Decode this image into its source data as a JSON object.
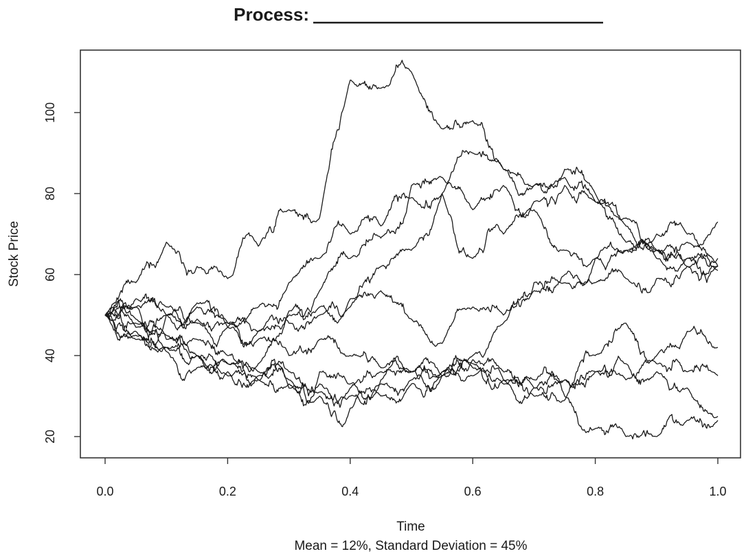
{
  "chart_data": {
    "type": "line",
    "title": "Process:",
    "title_blank": "________________________",
    "xlabel": "Time",
    "ylabel": "Stock Price",
    "caption": "Mean = 12%, Standard Deviation = 45%",
    "xlim": [
      0,
      1
    ],
    "ylim": [
      17,
      113
    ],
    "x_ticks": [
      0.0,
      0.2,
      0.4,
      0.6,
      0.8,
      1.0
    ],
    "x_tick_labels": [
      "0.0",
      "0.2",
      "0.4",
      "0.6",
      "0.8",
      "1.0"
    ],
    "y_ticks": [
      20,
      40,
      60,
      80,
      100
    ],
    "y_tick_labels": [
      "20",
      "40",
      "60",
      "80",
      "100"
    ],
    "grid": false,
    "legend": "none",
    "line_color": "#1a1a1a",
    "series": [
      {
        "x": [
          0,
          0.05,
          0.1,
          0.15,
          0.2,
          0.25,
          0.3,
          0.35,
          0.4,
          0.45,
          0.5,
          0.55,
          0.6,
          0.65,
          0.7,
          0.75,
          0.8,
          0.85,
          0.9,
          0.95,
          1.0
        ],
        "values": [
          50,
          58,
          68,
          62,
          59,
          67,
          76,
          74,
          108,
          106,
          110,
          96,
          98,
          86,
          82,
          84,
          78,
          72,
          70,
          70,
          73
        ]
      },
      {
        "x": [
          0,
          0.05,
          0.1,
          0.15,
          0.2,
          0.25,
          0.3,
          0.35,
          0.4,
          0.45,
          0.5,
          0.55,
          0.6,
          0.65,
          0.7,
          0.75,
          0.8,
          0.85,
          0.9,
          0.95,
          1.0
        ],
        "values": [
          50,
          52,
          50,
          49,
          47,
          52,
          58,
          64,
          70,
          72,
          79,
          80,
          90,
          86,
          82,
          86,
          80,
          68,
          66,
          64,
          62
        ]
      },
      {
        "x": [
          0,
          0.05,
          0.1,
          0.15,
          0.2,
          0.25,
          0.3,
          0.35,
          0.4,
          0.45,
          0.5,
          0.55,
          0.6,
          0.65,
          0.7,
          0.75,
          0.8,
          0.85,
          0.9,
          0.95,
          1.0
        ],
        "values": [
          50,
          49,
          50,
          52,
          47,
          44,
          51,
          56,
          64,
          69,
          82,
          84,
          76,
          82,
          76,
          66,
          64,
          66,
          64,
          64,
          64
        ]
      },
      {
        "x": [
          0,
          0.05,
          0.1,
          0.15,
          0.2,
          0.25,
          0.3,
          0.35,
          0.4,
          0.45,
          0.5,
          0.55,
          0.6,
          0.65,
          0.7,
          0.75,
          0.8,
          0.85,
          0.9,
          0.95,
          1.0
        ],
        "values": [
          50,
          52,
          50,
          48,
          48,
          46,
          48,
          50,
          52,
          62,
          66,
          80,
          64,
          70,
          78,
          82,
          78,
          74,
          66,
          62,
          61
        ]
      },
      {
        "x": [
          0,
          0.05,
          0.1,
          0.15,
          0.2,
          0.25,
          0.3,
          0.35,
          0.4,
          0.45,
          0.5,
          0.55,
          0.6,
          0.65,
          0.7,
          0.75,
          0.8,
          0.85,
          0.9,
          0.95,
          1.0
        ],
        "values": [
          50,
          54,
          52,
          53,
          48,
          46,
          50,
          52,
          54,
          56,
          49,
          43,
          52,
          50,
          58,
          60,
          64,
          66,
          66,
          68,
          62
        ]
      },
      {
        "x": [
          0,
          0.05,
          0.1,
          0.15,
          0.2,
          0.25,
          0.3,
          0.35,
          0.4,
          0.45,
          0.5,
          0.55,
          0.6,
          0.65,
          0.7,
          0.75,
          0.8,
          0.85,
          0.9,
          0.95,
          1.0
        ],
        "values": [
          50,
          47,
          44,
          40,
          38,
          36,
          34,
          33,
          32,
          36,
          36,
          35,
          40,
          48,
          56,
          58,
          58,
          59,
          59,
          62,
          62
        ]
      },
      {
        "x": [
          0,
          0.05,
          0.1,
          0.15,
          0.2,
          0.25,
          0.3,
          0.35,
          0.4,
          0.45,
          0.5,
          0.55,
          0.6,
          0.65,
          0.7,
          0.75,
          0.8,
          0.85,
          0.9,
          0.95,
          1.0
        ],
        "values": [
          50,
          44,
          41,
          37,
          35,
          34,
          33,
          31,
          30,
          33,
          34,
          35,
          38,
          34,
          30,
          29,
          40,
          48,
          38,
          36,
          35
        ]
      },
      {
        "x": [
          0,
          0.05,
          0.1,
          0.15,
          0.2,
          0.25,
          0.3,
          0.35,
          0.4,
          0.45,
          0.5,
          0.55,
          0.6,
          0.65,
          0.7,
          0.75,
          0.8,
          0.85,
          0.9,
          0.95,
          1.0
        ],
        "values": [
          50,
          46,
          42,
          40,
          36,
          34,
          32,
          30,
          27,
          30,
          33,
          36,
          35,
          33,
          32,
          34,
          36,
          38,
          36,
          32,
          25
        ]
      },
      {
        "x": [
          0,
          0.05,
          0.1,
          0.15,
          0.2,
          0.25,
          0.3,
          0.35,
          0.4,
          0.45,
          0.5,
          0.55,
          0.6,
          0.65,
          0.7,
          0.75,
          0.8,
          0.85,
          0.9,
          0.95,
          1.0
        ],
        "values": [
          50,
          45,
          42,
          40,
          38,
          35,
          36,
          36,
          33,
          34,
          36,
          36,
          37,
          34,
          32,
          30,
          22,
          20,
          20,
          24,
          24
        ]
      },
      {
        "x": [
          0,
          0.05,
          0.1,
          0.15,
          0.2,
          0.25,
          0.3,
          0.35,
          0.4,
          0.45,
          0.5,
          0.55,
          0.6,
          0.65,
          0.7,
          0.75,
          0.8,
          0.85,
          0.9,
          0.95,
          1.0
        ],
        "values": [
          50,
          48,
          45,
          44,
          40,
          38,
          40,
          44,
          40,
          37,
          36,
          35,
          39,
          36,
          34,
          34,
          36,
          34,
          40,
          46,
          42
        ]
      }
    ]
  }
}
